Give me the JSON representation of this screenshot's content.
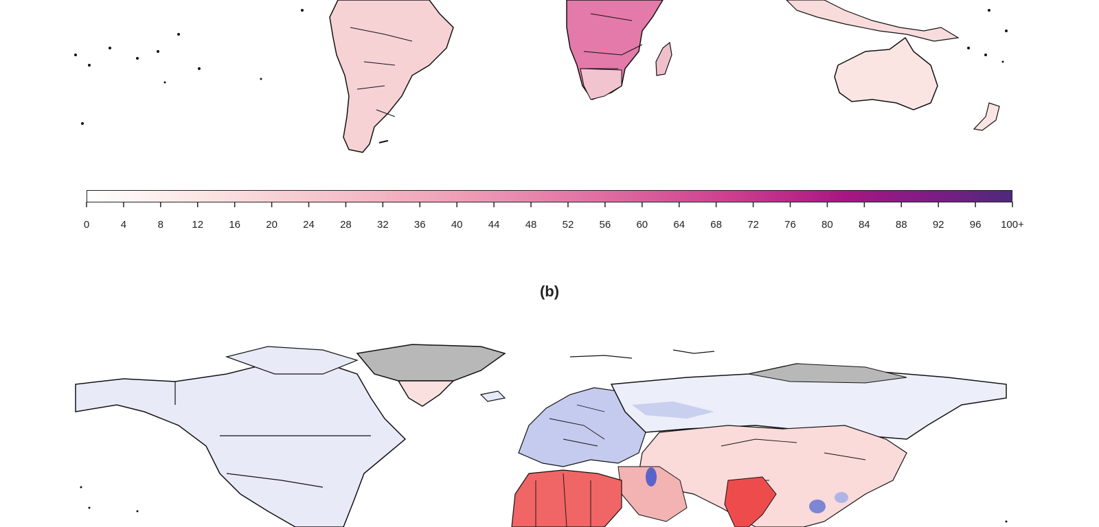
{
  "panel_b_label": "(b)",
  "legend": {
    "ticks": [
      "0",
      "4",
      "8",
      "12",
      "16",
      "20",
      "24",
      "28",
      "32",
      "36",
      "40",
      "44",
      "48",
      "52",
      "56",
      "60",
      "64",
      "68",
      "72",
      "76",
      "80",
      "84",
      "88",
      "92",
      "96",
      "100+"
    ],
    "colors": [
      "#ffffff",
      "#fbe3e1",
      "#f6c6cd",
      "#ef9fb8",
      "#e070a2",
      "#cc3d8e",
      "#a81682",
      "#7a1d84",
      "#4d2a7a"
    ]
  },
  "map_colors": {
    "top_low": "#f8dedd",
    "top_mid": "#f2bcc8",
    "top_high": "#de6fa5",
    "bottom_blue": "#e8eaf8",
    "bottom_blue_deep": "#8c96d8",
    "bottom_red": "#f25d5d",
    "bottom_red_light": "#fbd6d6",
    "missing_grey": "#b8b8b8",
    "border": "#111111"
  }
}
